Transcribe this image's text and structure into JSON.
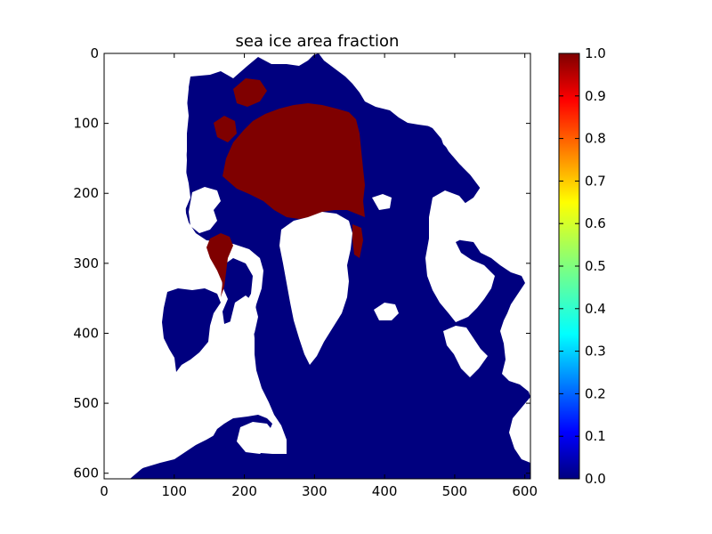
{
  "chart_data": {
    "type": "heatmap",
    "title": "sea ice area fraction",
    "xlim": [
      0,
      608
    ],
    "ylim": [
      608,
      0
    ],
    "y_inverted": true,
    "xticks": [
      0,
      100,
      200,
      300,
      400,
      500,
      600
    ],
    "yticks": [
      0,
      100,
      200,
      300,
      400,
      500,
      600
    ],
    "colorbar": {
      "colormap": "jet",
      "range": [
        0.0,
        1.0
      ],
      "ticks": [
        "0.0",
        "0.1",
        "0.2",
        "0.3",
        "0.4",
        "0.5",
        "0.6",
        "0.7",
        "0.8",
        "0.9",
        "1.0"
      ]
    },
    "value_colors": {
      "ocean_no_ice": "#00007f",
      "full_ice": "#7f0000",
      "land_masked": "#ffffff"
    },
    "regions": {
      "ice_cover_value": 1.0,
      "open_water_value": 0.0,
      "land": "masked"
    }
  }
}
